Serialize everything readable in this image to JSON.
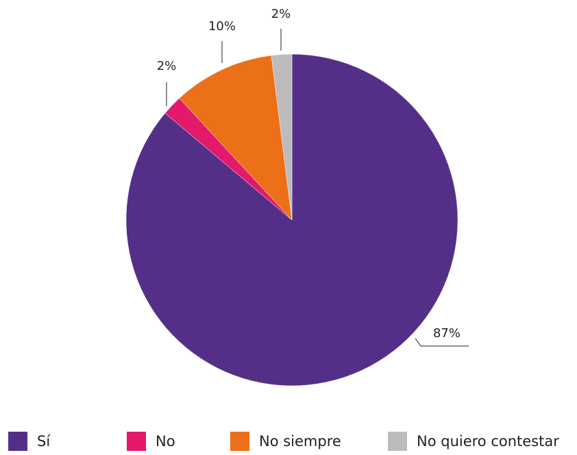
{
  "chart_data": {
    "type": "pie",
    "slices": [
      {
        "label": "Sí",
        "value": 87,
        "color": "#542f88",
        "display": "87%"
      },
      {
        "label": "No",
        "value": 2,
        "color": "#e3196c",
        "display": "2%"
      },
      {
        "label": "No siempre",
        "value": 10,
        "color": "#ec7017",
        "display": "10%"
      },
      {
        "label": "No quiero contestar",
        "value": 2,
        "color": "#bdbbbb",
        "display": "2%"
      }
    ],
    "start": "12 o'clock",
    "direction": "clockwise",
    "legend_position": "bottom",
    "legend": [
      "Sí",
      "No",
      "No siempre",
      "No quiero contestar"
    ]
  }
}
